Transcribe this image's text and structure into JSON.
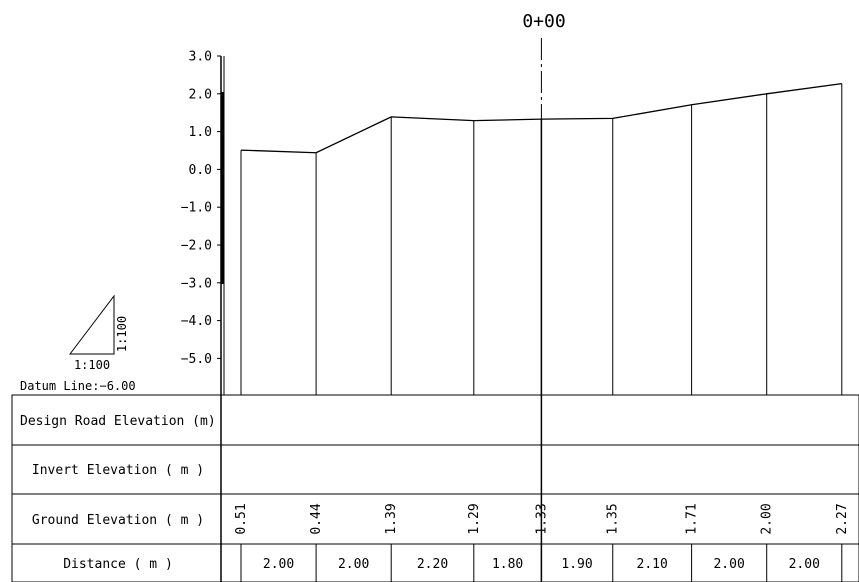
{
  "station_label": "0+00",
  "scale": {
    "horizontal": "1:100",
    "vertical": "1:100"
  },
  "datum_label": "Datum Line:−6.00",
  "y_axis": {
    "min": -6.0,
    "max": 3.0,
    "ticks": [
      {
        "value": 3.0,
        "label": "3.0"
      },
      {
        "value": 2.0,
        "label": "2.0"
      },
      {
        "value": 1.0,
        "label": "1.0"
      },
      {
        "value": 0.0,
        "label": "0.0"
      },
      {
        "value": -1.0,
        "label": "−1.0"
      },
      {
        "value": -2.0,
        "label": "−2.0"
      },
      {
        "value": -3.0,
        "label": "−3.0"
      },
      {
        "value": -4.0,
        "label": "−4.0"
      },
      {
        "value": -5.0,
        "label": "−5.0"
      }
    ]
  },
  "table": {
    "rows": [
      {
        "label": "Design Road Elevation (m)"
      },
      {
        "label": "Invert Elevation ( m )"
      },
      {
        "label": "Ground Elevation ( m )"
      },
      {
        "label": "Distance ( m )"
      }
    ]
  },
  "profile": {
    "ground_elevations": [
      0.51,
      0.44,
      1.39,
      1.29,
      1.33,
      1.35,
      1.71,
      2.0,
      2.27
    ],
    "ground_labels": [
      "0.51",
      "0.44",
      "1.39",
      "1.29",
      "1.33",
      "1.35",
      "1.71",
      "2.00",
      "2.27"
    ],
    "distances": [
      2.0,
      2.0,
      2.2,
      1.8,
      1.9,
      2.1,
      2.0,
      2.0
    ],
    "distance_labels": [
      "2.00",
      "2.00",
      "2.20",
      "1.80",
      "1.90",
      "2.10",
      "2.00",
      "2.00"
    ],
    "station_index": 4
  }
}
